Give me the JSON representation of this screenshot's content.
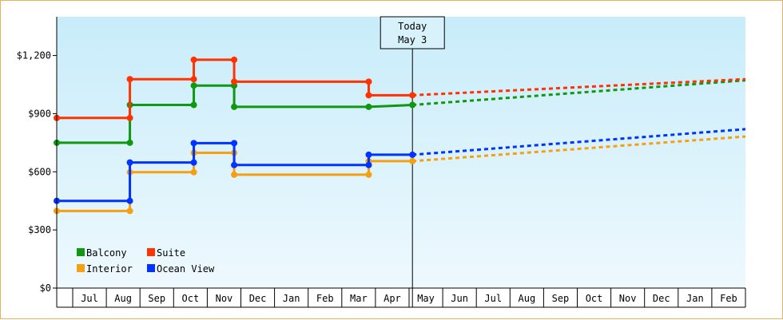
{
  "chart_data": {
    "type": "line",
    "title": "",
    "xlabel": "",
    "ylabel": "",
    "x_months": [
      "Jul",
      "Aug",
      "Sep",
      "Oct",
      "Nov",
      "Dec",
      "Jan",
      "Feb",
      "Mar",
      "Apr",
      "May",
      "Jun",
      "Jul",
      "Aug",
      "Sep",
      "Oct",
      "Nov",
      "Dec",
      "Jan",
      "Feb"
    ],
    "yticks": [
      "$0",
      "$300",
      "$600",
      "$900",
      "$1,200"
    ],
    "ylim": [
      0,
      1200
    ],
    "today_marker": {
      "line1": "Today",
      "line2": "May 3",
      "x": 10.1
    },
    "grid": false,
    "legend_position": "bottom-left",
    "series": [
      {
        "name": "Balcony",
        "color": "#109810",
        "step_points": [
          [
            0,
            750
          ],
          [
            1.7,
            750
          ],
          [
            1.7,
            945
          ],
          [
            3.6,
            945
          ],
          [
            3.6,
            1045
          ],
          [
            4.8,
            1045
          ],
          [
            4.8,
            935
          ],
          [
            8.8,
            935
          ],
          [
            10.1,
            945
          ]
        ],
        "forecast": [
          [
            10.1,
            945
          ],
          [
            20.2,
            1072
          ]
        ]
      },
      {
        "name": "Suite",
        "color": "#ff3300",
        "step_points": [
          [
            0,
            878
          ],
          [
            1.7,
            878
          ],
          [
            1.7,
            1078
          ],
          [
            3.6,
            1078
          ],
          [
            3.6,
            1178
          ],
          [
            4.8,
            1178
          ],
          [
            4.8,
            1065
          ],
          [
            8.8,
            1065
          ],
          [
            8.8,
            995
          ],
          [
            10.1,
            995
          ]
        ],
        "forecast": [
          [
            10.1,
            995
          ],
          [
            20.2,
            1078
          ]
        ]
      },
      {
        "name": "Interior",
        "color": "#f5a010",
        "step_points": [
          [
            0,
            398
          ],
          [
            1.7,
            398
          ],
          [
            1.7,
            598
          ],
          [
            3.6,
            598
          ],
          [
            3.6,
            698
          ],
          [
            4.8,
            698
          ],
          [
            4.8,
            585
          ],
          [
            8.8,
            585
          ],
          [
            8.8,
            655
          ],
          [
            10.1,
            655
          ]
        ],
        "forecast": [
          [
            10.1,
            655
          ],
          [
            20.2,
            782
          ]
        ]
      },
      {
        "name": "Ocean View",
        "color": "#0033ff",
        "step_points": [
          [
            0,
            450
          ],
          [
            1.7,
            450
          ],
          [
            1.7,
            648
          ],
          [
            3.6,
            648
          ],
          [
            3.6,
            748
          ],
          [
            4.8,
            748
          ],
          [
            4.8,
            635
          ],
          [
            8.8,
            635
          ],
          [
            8.8,
            688
          ],
          [
            10.1,
            688
          ]
        ],
        "forecast": [
          [
            10.1,
            688
          ],
          [
            20.2,
            820
          ]
        ]
      }
    ],
    "legend_order": [
      "Balcony",
      "Suite",
      "Interior",
      "Ocean View"
    ]
  }
}
